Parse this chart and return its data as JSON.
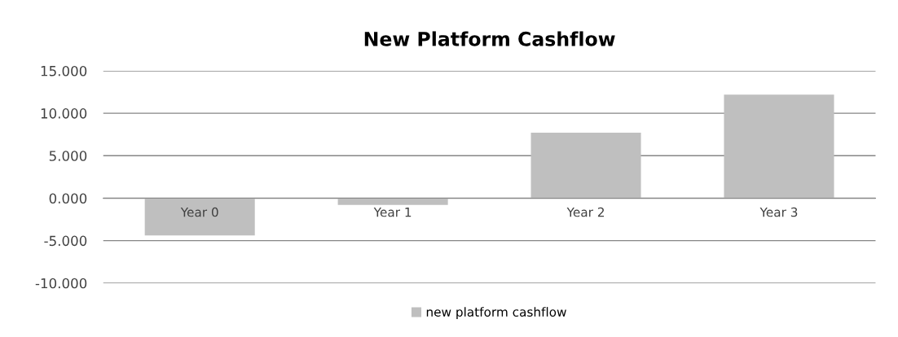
{
  "chart_data": {
    "type": "bar",
    "title": "New Platform Cashflow",
    "categories": [
      "Year 0",
      "Year 1",
      "Year 2",
      "Year 3"
    ],
    "series": [
      {
        "name": "new platform cashflow",
        "color": "#bfbfbf",
        "values": [
          -4.4,
          -0.8,
          7.7,
          12.2
        ]
      }
    ],
    "ylim": [
      -10,
      15
    ],
    "yticks": [
      {
        "value": -10,
        "label": "-10.000"
      },
      {
        "value": -5,
        "label": "-5.000"
      },
      {
        "value": 0,
        "label": "0.000"
      },
      {
        "value": 5,
        "label": "5.000"
      },
      {
        "value": 10,
        "label": "10.000"
      },
      {
        "value": 15,
        "label": "15.000"
      }
    ],
    "grid": "y",
    "legend": "bottom"
  }
}
